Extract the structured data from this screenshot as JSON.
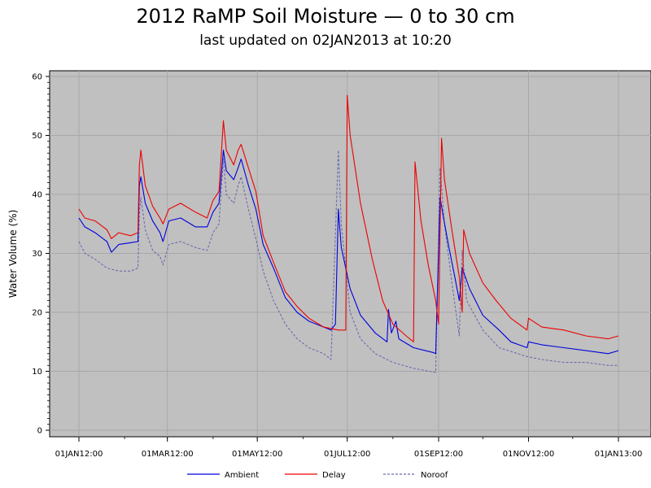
{
  "title": "2012 RaMP Soil Moisture — 0 to 30 cm",
  "subtitle": "last updated on 02JAN2013 at 10:20",
  "colors": {
    "plot_bg": "#c0c0c0",
    "grid": "#a8a8a8",
    "ambient": "#0000dd",
    "delay": "#ee0000",
    "noroof": "#6b6bb0"
  },
  "chart_data": {
    "type": "line",
    "title": "2012 RaMP Soil Moisture — 0 to 30 cm",
    "subtitle": "last updated on 02JAN2013 at 10:20",
    "xlabel": "",
    "ylabel": "Water Volume (%)",
    "xlim": [
      "2012-01-01",
      "2013-01-01"
    ],
    "ylim": [
      0,
      60
    ],
    "y_ticks": [
      0,
      10,
      20,
      30,
      40,
      50,
      60
    ],
    "x_tick_labels": [
      {
        "date": "2012-01-01",
        "label": "01JAN12:00"
      },
      {
        "date": "2012-03-01",
        "label": "01MAR12:00"
      },
      {
        "date": "2012-05-01",
        "label": "01MAY12:00"
      },
      {
        "date": "2012-07-01",
        "label": "01JUL12:00"
      },
      {
        "date": "2012-09-01",
        "label": "01SEP12:00"
      },
      {
        "date": "2012-11-01",
        "label": "01NOV12:00"
      },
      {
        "date": "2013-01-01",
        "label": "01JAN13:00"
      }
    ],
    "grid": true,
    "legend_position": "bottom",
    "series": [
      {
        "name": "Ambient",
        "style": "solid",
        "points": [
          [
            "2012-01-01",
            36.0
          ],
          [
            "2012-01-05",
            34.5
          ],
          [
            "2012-01-12",
            33.5
          ],
          [
            "2012-01-20",
            32.0
          ],
          [
            "2012-01-23",
            30.2
          ],
          [
            "2012-01-28",
            31.5
          ],
          [
            "2012-02-05",
            31.8
          ],
          [
            "2012-02-10",
            32.0
          ],
          [
            "2012-02-11",
            41.5
          ],
          [
            "2012-02-12",
            43.0
          ],
          [
            "2012-02-15",
            38.5
          ],
          [
            "2012-02-20",
            35.5
          ],
          [
            "2012-02-25",
            33.5
          ],
          [
            "2012-02-27",
            32.0
          ],
          [
            "2012-03-02",
            35.5
          ],
          [
            "2012-03-10",
            36.0
          ],
          [
            "2012-03-20",
            34.5
          ],
          [
            "2012-03-28",
            34.5
          ],
          [
            "2012-04-01",
            37.0
          ],
          [
            "2012-04-05",
            38.5
          ],
          [
            "2012-04-08",
            47.5
          ],
          [
            "2012-04-10",
            44.0
          ],
          [
            "2012-04-15",
            42.5
          ],
          [
            "2012-04-18",
            44.5
          ],
          [
            "2012-04-20",
            46.0
          ],
          [
            "2012-04-25",
            41.5
          ],
          [
            "2012-04-30",
            37.5
          ],
          [
            "2012-05-05",
            31.5
          ],
          [
            "2012-05-12",
            27.5
          ],
          [
            "2012-05-20",
            22.5
          ],
          [
            "2012-05-28",
            20.0
          ],
          [
            "2012-06-05",
            18.5
          ],
          [
            "2012-06-15",
            17.5
          ],
          [
            "2012-06-20",
            17.0
          ],
          [
            "2012-06-23",
            18.0
          ],
          [
            "2012-06-25",
            37.5
          ],
          [
            "2012-06-27",
            31.0
          ],
          [
            "2012-07-03",
            24.0
          ],
          [
            "2012-07-10",
            19.5
          ],
          [
            "2012-07-20",
            16.5
          ],
          [
            "2012-07-28",
            15.0
          ],
          [
            "2012-07-29",
            20.5
          ],
          [
            "2012-07-31",
            16.5
          ],
          [
            "2012-08-03",
            18.5
          ],
          [
            "2012-08-05",
            15.5
          ],
          [
            "2012-08-15",
            14.0
          ],
          [
            "2012-08-28",
            13.2
          ],
          [
            "2012-08-30",
            13.0
          ],
          [
            "2012-09-02",
            39.5
          ],
          [
            "2012-09-04",
            36.5
          ],
          [
            "2012-09-08",
            31.0
          ],
          [
            "2012-09-12",
            26.0
          ],
          [
            "2012-09-15",
            22.0
          ],
          [
            "2012-09-17",
            27.5
          ],
          [
            "2012-09-22",
            24.0
          ],
          [
            "2012-10-01",
            19.5
          ],
          [
            "2012-10-12",
            17.0
          ],
          [
            "2012-10-20",
            15.0
          ],
          [
            "2012-10-31",
            14.0
          ],
          [
            "2012-11-01",
            15.0
          ],
          [
            "2012-11-10",
            14.5
          ],
          [
            "2012-11-25",
            14.0
          ],
          [
            "2012-12-10",
            13.5
          ],
          [
            "2012-12-25",
            13.0
          ],
          [
            "2013-01-01",
            13.5
          ]
        ]
      },
      {
        "name": "Delay",
        "style": "solid",
        "points": [
          [
            "2012-01-01",
            37.5
          ],
          [
            "2012-01-05",
            36.0
          ],
          [
            "2012-01-12",
            35.5
          ],
          [
            "2012-01-20",
            34.0
          ],
          [
            "2012-01-23",
            32.5
          ],
          [
            "2012-01-28",
            33.5
          ],
          [
            "2012-02-05",
            33.0
          ],
          [
            "2012-02-10",
            33.5
          ],
          [
            "2012-02-11",
            45.0
          ],
          [
            "2012-02-12",
            47.5
          ],
          [
            "2012-02-15",
            41.5
          ],
          [
            "2012-02-20",
            38.0
          ],
          [
            "2012-02-25",
            36.0
          ],
          [
            "2012-02-27",
            35.0
          ],
          [
            "2012-03-02",
            37.5
          ],
          [
            "2012-03-10",
            38.5
          ],
          [
            "2012-03-20",
            37.0
          ],
          [
            "2012-03-28",
            36.0
          ],
          [
            "2012-04-01",
            39.0
          ],
          [
            "2012-04-05",
            40.5
          ],
          [
            "2012-04-08",
            52.5
          ],
          [
            "2012-04-10",
            47.5
          ],
          [
            "2012-04-15",
            45.0
          ],
          [
            "2012-04-18",
            47.5
          ],
          [
            "2012-04-20",
            48.5
          ],
          [
            "2012-04-25",
            44.5
          ],
          [
            "2012-04-30",
            40.5
          ],
          [
            "2012-05-05",
            33.0
          ],
          [
            "2012-05-12",
            28.5
          ],
          [
            "2012-05-20",
            23.5
          ],
          [
            "2012-05-28",
            21.0
          ],
          [
            "2012-06-05",
            19.0
          ],
          [
            "2012-06-15",
            17.5
          ],
          [
            "2012-06-25",
            17.0
          ],
          [
            "2012-06-30",
            17.0
          ],
          [
            "2012-07-01",
            56.8
          ],
          [
            "2012-07-03",
            50.0
          ],
          [
            "2012-07-10",
            38.5
          ],
          [
            "2012-07-18",
            29.0
          ],
          [
            "2012-07-25",
            22.0
          ],
          [
            "2012-08-01",
            18.0
          ],
          [
            "2012-08-10",
            16.0
          ],
          [
            "2012-08-15",
            15.0
          ],
          [
            "2012-08-16",
            45.5
          ],
          [
            "2012-08-20",
            35.5
          ],
          [
            "2012-08-25",
            28.0
          ],
          [
            "2012-08-30",
            22.0
          ],
          [
            "2012-09-01",
            18.0
          ],
          [
            "2012-09-03",
            49.5
          ],
          [
            "2012-09-05",
            42.5
          ],
          [
            "2012-09-10",
            34.0
          ],
          [
            "2012-09-15",
            26.0
          ],
          [
            "2012-09-17",
            20.0
          ],
          [
            "2012-09-18",
            34.0
          ],
          [
            "2012-09-22",
            30.0
          ],
          [
            "2012-10-01",
            25.0
          ],
          [
            "2012-10-10",
            22.0
          ],
          [
            "2012-10-20",
            19.0
          ],
          [
            "2012-10-31",
            17.0
          ],
          [
            "2012-11-01",
            19.0
          ],
          [
            "2012-11-10",
            17.5
          ],
          [
            "2012-11-25",
            17.0
          ],
          [
            "2012-12-10",
            16.0
          ],
          [
            "2012-12-25",
            15.5
          ],
          [
            "2013-01-01",
            16.0
          ]
        ]
      },
      {
        "name": "Noroof",
        "style": "dashed",
        "points": [
          [
            "2012-01-01",
            32.0
          ],
          [
            "2012-01-05",
            30.0
          ],
          [
            "2012-01-12",
            29.0
          ],
          [
            "2012-01-20",
            27.5
          ],
          [
            "2012-01-28",
            27.0
          ],
          [
            "2012-02-05",
            27.0
          ],
          [
            "2012-02-10",
            27.5
          ],
          [
            "2012-02-11",
            36.5
          ],
          [
            "2012-02-12",
            39.5
          ],
          [
            "2012-02-15",
            34.0
          ],
          [
            "2012-02-20",
            30.5
          ],
          [
            "2012-02-25",
            29.5
          ],
          [
            "2012-02-27",
            28.0
          ],
          [
            "2012-03-02",
            31.5
          ],
          [
            "2012-03-10",
            32.0
          ],
          [
            "2012-03-20",
            31.0
          ],
          [
            "2012-03-28",
            30.5
          ],
          [
            "2012-04-01",
            33.5
          ],
          [
            "2012-04-05",
            35.0
          ],
          [
            "2012-04-08",
            46.0
          ],
          [
            "2012-04-10",
            40.0
          ],
          [
            "2012-04-15",
            38.5
          ],
          [
            "2012-04-18",
            41.5
          ],
          [
            "2012-04-20",
            43.0
          ],
          [
            "2012-04-25",
            37.5
          ],
          [
            "2012-04-30",
            32.5
          ],
          [
            "2012-05-05",
            27.0
          ],
          [
            "2012-05-12",
            22.0
          ],
          [
            "2012-05-20",
            18.0
          ],
          [
            "2012-05-28",
            15.5
          ],
          [
            "2012-06-05",
            14.0
          ],
          [
            "2012-06-15",
            13.0
          ],
          [
            "2012-06-20",
            12.0
          ],
          [
            "2012-06-25",
            47.5
          ],
          [
            "2012-06-27",
            35.0
          ],
          [
            "2012-07-03",
            20.0
          ],
          [
            "2012-07-10",
            15.5
          ],
          [
            "2012-07-20",
            13.0
          ],
          [
            "2012-08-01",
            11.5
          ],
          [
            "2012-08-15",
            10.5
          ],
          [
            "2012-08-30",
            9.8
          ],
          [
            "2012-09-02",
            44.5
          ],
          [
            "2012-09-05",
            35.0
          ],
          [
            "2012-09-10",
            25.0
          ],
          [
            "2012-09-15",
            16.0
          ],
          [
            "2012-09-17",
            30.5
          ],
          [
            "2012-09-20",
            22.0
          ],
          [
            "2012-10-01",
            17.0
          ],
          [
            "2012-10-12",
            14.0
          ],
          [
            "2012-10-31",
            12.5
          ],
          [
            "2012-11-10",
            12.0
          ],
          [
            "2012-11-25",
            11.5
          ],
          [
            "2012-12-10",
            11.5
          ],
          [
            "2012-12-25",
            11.0
          ],
          [
            "2013-01-01",
            11.0
          ]
        ]
      }
    ]
  }
}
